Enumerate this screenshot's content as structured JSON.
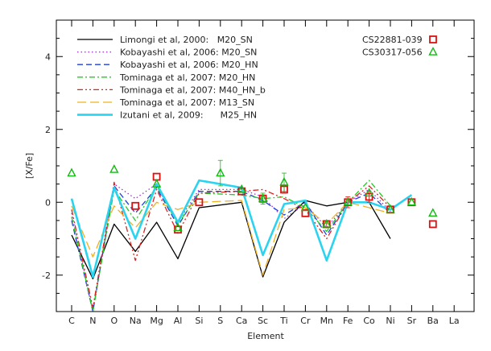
{
  "chart_data": {
    "type": "line",
    "xlabel": "Element",
    "ylabel": "[X/Fe]",
    "ylim": [
      -3,
      5
    ],
    "yticks": [
      -2,
      0,
      2,
      4
    ],
    "categories": [
      "C",
      "N",
      "O",
      "Na",
      "Mg",
      "Al",
      "Si",
      "S",
      "Ca",
      "Sc",
      "Ti",
      "Cr",
      "Mn",
      "Fe",
      "Co",
      "Ni",
      "Sr",
      "Ba",
      "La"
    ],
    "legend_position": "top-left",
    "series": [
      {
        "name": "Limongi et al, 2000:   M20_SN",
        "color": "#000000",
        "dash": "solid",
        "width": 1.3,
        "x": [
          "C",
          "N",
          "O",
          "Na",
          "Mg",
          "Al",
          "Si",
          "Ca",
          "Sc",
          "Ti",
          "Cr",
          "Mn",
          "Fe",
          "Co",
          "Ni"
        ],
        "values": [
          -0.9,
          -2.1,
          -0.6,
          -1.35,
          -0.55,
          -1.55,
          -0.15,
          0.0,
          -2.05,
          -0.55,
          0.05,
          -0.1,
          0.0,
          0.0,
          -1.0
        ]
      },
      {
        "name": "Kobayashi et al, 2006: M20_SN",
        "color": "#9933cc",
        "dash": "1.5,3",
        "width": 1.3,
        "x": [
          "C",
          "N",
          "O",
          "Na",
          "Mg",
          "Al",
          "Si",
          "Ca",
          "Sc",
          "Ti",
          "Cr",
          "Mn",
          "Fe",
          "Co",
          "Ni"
        ],
        "values": [
          -0.3,
          -3.0,
          0.5,
          0.1,
          0.5,
          -0.55,
          0.35,
          0.35,
          0.15,
          -0.45,
          -0.05,
          -0.7,
          0.0,
          0.35,
          -0.25
        ]
      },
      {
        "name": "Kobayashi et al, 2006: M20_HN",
        "color": "#1f3fd6",
        "dash": "7,4",
        "width": 1.3,
        "x": [
          "C",
          "N",
          "O",
          "Na",
          "Mg",
          "Al",
          "Si",
          "Ca",
          "Sc",
          "Ti",
          "Cr",
          "Mn",
          "Fe",
          "Co",
          "Ni"
        ],
        "values": [
          -0.5,
          -3.0,
          0.45,
          -0.3,
          0.4,
          -0.65,
          0.3,
          0.3,
          0.05,
          -0.35,
          0.0,
          -0.9,
          0.0,
          0.25,
          -0.3
        ]
      },
      {
        "name": "Tominaga et al, 2007: M20_HN",
        "color": "#22cc22",
        "dash": "7,3,2,3",
        "width": 1.3,
        "x": [
          "C",
          "N",
          "O",
          "Na",
          "Mg",
          "Al",
          "Si",
          "Ca",
          "Sc",
          "Ti",
          "Cr",
          "Mn",
          "Fe",
          "Co",
          "Ni"
        ],
        "values": [
          -0.4,
          -3.0,
          0.35,
          -0.5,
          0.45,
          -0.6,
          0.25,
          0.2,
          0.1,
          0.15,
          -0.15,
          -0.8,
          0.0,
          0.6,
          -0.1
        ]
      },
      {
        "name": "Tominaga et al, 2007: M40_HN_b",
        "color": "#dd2222",
        "dash": "7,3,2,3,2,3",
        "width": 1.3,
        "x": [
          "C",
          "N",
          "O",
          "Na",
          "Mg",
          "Al",
          "Si",
          "Ca",
          "Sc",
          "Ti",
          "Cr",
          "Mn",
          "Fe",
          "Co",
          "Ni"
        ],
        "values": [
          -0.2,
          -2.9,
          0.55,
          -1.6,
          0.35,
          -0.85,
          0.25,
          0.3,
          0.35,
          0.1,
          -0.2,
          -1.0,
          0.0,
          0.45,
          -0.15
        ]
      },
      {
        "name": "Tominaga et al, 2007: M13_SN",
        "color": "#f0b020",
        "dash": "11,5",
        "width": 1.3,
        "x": [
          "C",
          "N",
          "O",
          "Na",
          "Mg",
          "Al",
          "Si",
          "Ca",
          "Sc",
          "Ti",
          "Cr",
          "Mn",
          "Fe",
          "Co",
          "Ni"
        ],
        "values": [
          -0.1,
          -1.5,
          -0.1,
          -0.7,
          0.0,
          -0.2,
          0.0,
          0.05,
          -2.0,
          -0.2,
          -0.15,
          -0.6,
          0.0,
          -0.15,
          -0.3
        ]
      },
      {
        "name": "Izutani et al, 2009:      M25_HN",
        "color": "#2ad4f0",
        "dash": "solid",
        "width": 2.6,
        "x": [
          "C",
          "N",
          "O",
          "Na",
          "Mg",
          "Al",
          "Si",
          "Ca",
          "Sc",
          "Ti",
          "Cr",
          "Mn",
          "Fe",
          "Co",
          "Ni",
          "Sr"
        ],
        "values": [
          0.1,
          -2.05,
          0.4,
          -1.0,
          0.5,
          -0.55,
          0.6,
          0.4,
          -1.45,
          -0.05,
          0.05,
          -1.6,
          0.0,
          0.0,
          -0.2,
          0.2
        ]
      }
    ],
    "observations": [
      {
        "name": "CS22881-039",
        "marker": "square",
        "color": "#dd1111",
        "x": [
          "Na",
          "Mg",
          "Al",
          "Si",
          "Ca",
          "Sc",
          "Ti",
          "Cr",
          "Mn",
          "Fe",
          "Co",
          "Ni",
          "Sr",
          "Ba"
        ],
        "values": [
          -0.1,
          0.7,
          -0.75,
          0.0,
          0.3,
          0.1,
          0.35,
          -0.3,
          -0.6,
          0.0,
          0.15,
          -0.2,
          0.0,
          -0.6
        ],
        "errors": [
          0,
          0,
          0,
          0,
          0,
          0.1,
          0.1,
          0,
          0.1,
          0.15,
          0.15,
          0,
          0,
          0
        ]
      },
      {
        "name": "CS30317-056",
        "marker": "triangle",
        "color": "#11bb11",
        "x": [
          "C",
          "O",
          "Mg",
          "Al",
          "S",
          "Ca",
          "Sc",
          "Ti",
          "Cr",
          "Mn",
          "Fe",
          "Co",
          "Ni",
          "Sr",
          "Ba"
        ],
        "values": [
          0.8,
          0.9,
          0.5,
          -0.7,
          0.8,
          0.35,
          0.1,
          0.55,
          -0.15,
          -0.6,
          0.0,
          0.25,
          -0.2,
          0.0,
          -0.3
        ],
        "errors": [
          0,
          0,
          0,
          0,
          0.35,
          0,
          0.15,
          0.25,
          0,
          0,
          0,
          0,
          0,
          0,
          0
        ]
      }
    ]
  }
}
